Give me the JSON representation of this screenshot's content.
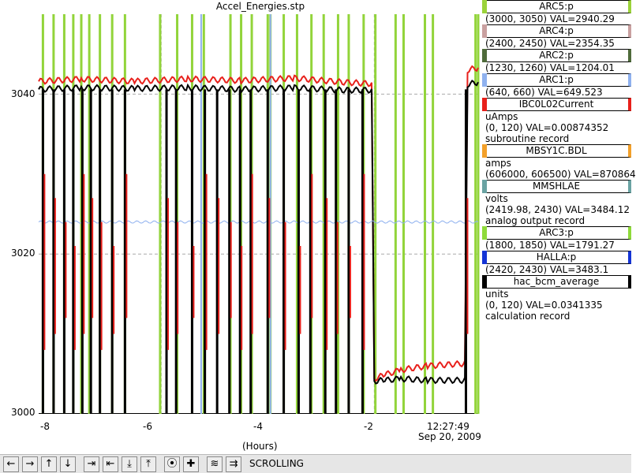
{
  "window": {
    "title": "Accel_Energies.stp"
  },
  "axes": {
    "y_ticks": [
      "3000",
      "3020",
      "3040"
    ],
    "x_ticks": [
      "-8",
      "-6",
      "-4",
      "-2"
    ],
    "x_unit": "(Hours)",
    "time_label": "12:27:49",
    "date_label": "Sep 20, 2009"
  },
  "legend": [
    {
      "name": "ARC5:p",
      "color": "#9bd33a",
      "lines": [
        "(3000, 3050) VAL=2940.29"
      ]
    },
    {
      "name": "ARC4:p",
      "color": "#c9a0a0",
      "lines": [
        "(2400, 2450) VAL=2354.35"
      ]
    },
    {
      "name": "ARC2:p",
      "color": "#4f6b3b",
      "lines": [
        "(1230, 1260) VAL=1204.01"
      ]
    },
    {
      "name": "ARC1:p",
      "color": "#8fb1ef",
      "lines": [
        "(640, 660) VAL=649.523"
      ]
    },
    {
      "name": "IBC0L02Current",
      "color": "#e8201b",
      "lines": [
        "uAmps",
        "(0, 120) VAL=0.00874352",
        "subroutine record"
      ]
    },
    {
      "name": "MBSY1C.BDL",
      "color": "#f3a02a",
      "lines": [
        "amps",
        "(606000, 606500) VAL=870864"
      ]
    },
    {
      "name": "MMSHLAE",
      "color": "#6aa3a3",
      "lines": [
        "volts",
        "(2419.98, 2430) VAL=3484.12",
        "analog output record"
      ]
    },
    {
      "name": "ARC3:p",
      "color": "#8fdb3a",
      "lines": [
        "(1800, 1850) VAL=1791.27"
      ]
    },
    {
      "name": "HALLA:p",
      "color": "#1434d6",
      "lines": [
        "(2420, 2430) VAL=3483.1"
      ]
    },
    {
      "name": "hac_bcm_average",
      "color": "#000000",
      "lines": [
        "units",
        "(0, 120) VAL=0.0341335",
        "calculation record"
      ]
    }
  ],
  "toolbar": {
    "buttons": [
      {
        "name": "scroll-left-button",
        "glyph": "←"
      },
      {
        "name": "scroll-right-button",
        "glyph": "→"
      },
      {
        "name": "scroll-up-button",
        "glyph": "↑"
      },
      {
        "name": "scroll-down-button",
        "glyph": "↓"
      },
      {
        "name": "zoom-in-horizontal-button",
        "glyph": "⇥"
      },
      {
        "name": "zoom-out-horizontal-button",
        "glyph": "⇤"
      },
      {
        "name": "zoom-in-vertical-button",
        "glyph": "⤓"
      },
      {
        "name": "zoom-out-vertical-button",
        "glyph": "⤒"
      },
      {
        "name": "stop-button",
        "glyph": "⦿"
      },
      {
        "name": "add-button",
        "glyph": "✚"
      },
      {
        "name": "config-button",
        "glyph": "≋"
      },
      {
        "name": "export-button",
        "glyph": "⇉"
      }
    ],
    "status": "SCROLLING"
  },
  "chart_data": {
    "type": "line",
    "x_range": [
      -8.3,
      -0.05
    ],
    "y_range": [
      3000,
      3050
    ],
    "grid": true,
    "series": [
      {
        "name": "IBC0L02Current",
        "color": "#e8201b",
        "x": [
          -8.3,
          -7.5,
          -6.5,
          -5.5,
          -4.5,
          -3.5,
          -2.6,
          -2.05,
          -2.0,
          -1.8,
          -1.5,
          -1.0,
          -0.3,
          -0.25,
          -0.05
        ],
        "y": [
          3041.6,
          3041.9,
          3041.6,
          3041.9,
          3041.7,
          3042.0,
          3041.5,
          3041.3,
          3004.4,
          3004.9,
          3005.5,
          3006.0,
          3006.3,
          3043.0,
          3043.3
        ]
      },
      {
        "name": "hac_bcm_average",
        "color": "#000000",
        "x": [
          -8.3,
          -7.5,
          -6.5,
          -5.5,
          -4.5,
          -3.5,
          -2.6,
          -2.05,
          -2.0,
          -1.8,
          -1.5,
          -1.0,
          -0.3,
          -0.25,
          -0.05
        ],
        "y": [
          3040.6,
          3040.8,
          3040.7,
          3040.8,
          3040.6,
          3040.8,
          3040.5,
          3040.5,
          3004.1,
          3004.2,
          3004.4,
          3004.2,
          3004.2,
          3041.2,
          3041.5
        ]
      },
      {
        "name": "ARC1:p",
        "color": "#8fb1ef",
        "x": [
          -8.3,
          -0.05
        ],
        "y": [
          3024.0,
          3024.0
        ]
      }
    ],
    "drop_events_hours": [
      -8.22,
      -8.02,
      -7.82,
      -7.65,
      -7.48,
      -7.32,
      -7.15,
      -6.92,
      -6.68,
      -5.9,
      -5.72,
      -5.42,
      -5.18,
      -4.95,
      -4.72,
      -4.52,
      -4.32,
      -4.0,
      -3.7,
      -3.42,
      -3.2,
      -2.92,
      -2.72,
      -2.48,
      -2.22,
      -0.28
    ],
    "green_vertical_markers_hours": [
      -8.22,
      -8.02,
      -7.82,
      -7.65,
      -7.5,
      -7.35,
      -7.15,
      -6.92,
      -6.68,
      -6.02,
      -5.7,
      -5.42,
      -5.2,
      -4.7,
      -4.5,
      -4.3,
      -4.0,
      -3.95,
      -3.7,
      -3.45,
      -3.18,
      -2.95,
      -2.68,
      -2.48,
      -2.2,
      -1.98,
      -1.6,
      -1.45,
      -1.05,
      -0.9,
      -0.1,
      -0.05
    ],
    "blue_vertical_markers_hours": [
      -5.25,
      -3.95
    ]
  }
}
